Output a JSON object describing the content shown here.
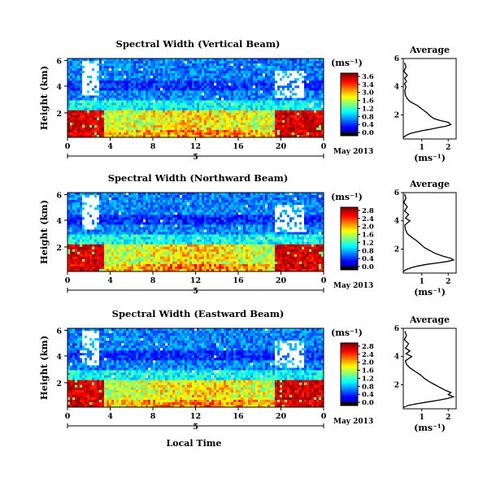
{
  "chart_data": [
    {
      "type": "heatmap",
      "title": "Spectral Width (Vertical Beam)",
      "ylabel": "Height (km)",
      "ytick_labels": [
        "6",
        "4",
        "2"
      ],
      "xtick_labels": [
        "0",
        "4",
        "8",
        "12",
        "16",
        "20",
        "0"
      ],
      "date_axis": {
        "day_label": "5",
        "month_label": "May 2013"
      },
      "colorbar": {
        "unit_label": "(ms⁻¹)",
        "ticks": [
          "3.6",
          "3.4",
          "3.0",
          "1.6",
          "1.2",
          "0.8",
          "0.4",
          "0.0"
        ]
      },
      "profile": {
        "title": "Average",
        "ytick_labels": [
          "6",
          "4",
          "2"
        ],
        "xtick_labels": [
          "1",
          "2"
        ],
        "xlabel": "(ms⁻¹)",
        "xlim": [
          0.3,
          2.3
        ],
        "ylim": [
          0.3,
          6
        ],
        "points": [
          [
            0.3,
            0.4
          ],
          [
            0.4,
            0.55
          ],
          [
            0.55,
            0.68
          ],
          [
            0.75,
            0.78
          ],
          [
            1.0,
            0.88
          ],
          [
            1.3,
            0.98
          ],
          [
            1.6,
            1.1
          ],
          [
            1.9,
            1.2
          ],
          [
            2.1,
            1.32
          ],
          [
            2.0,
            1.48
          ],
          [
            1.7,
            1.6
          ],
          [
            1.45,
            1.75
          ],
          [
            1.3,
            1.95
          ],
          [
            1.2,
            2.15
          ],
          [
            1.05,
            2.35
          ],
          [
            0.95,
            2.5
          ],
          [
            0.85,
            2.65
          ],
          [
            0.7,
            2.8
          ],
          [
            0.55,
            2.95
          ],
          [
            0.45,
            3.15
          ],
          [
            0.38,
            3.4
          ],
          [
            0.36,
            3.7
          ],
          [
            0.4,
            4.0
          ],
          [
            0.35,
            4.2
          ],
          [
            0.42,
            4.4
          ],
          [
            0.35,
            4.6
          ],
          [
            0.45,
            4.8
          ],
          [
            0.32,
            5.1
          ],
          [
            0.4,
            5.4
          ],
          [
            0.35,
            5.7
          ]
        ]
      }
    },
    {
      "type": "heatmap",
      "title": "Spectral Width (Northward Beam)",
      "ylabel": "Height (km)",
      "ytick_labels": [
        "6",
        "4",
        "2"
      ],
      "xtick_labels": [
        "0",
        "4",
        "8",
        "12",
        "16",
        "20",
        "0"
      ],
      "date_axis": {
        "day_label": "5",
        "month_label": "May 2013"
      },
      "colorbar": {
        "unit_label": "(ms⁻¹)",
        "ticks": [
          "2.8",
          "2.4",
          "2.0",
          "1.6",
          "1.2",
          "0.8",
          "0.4",
          "0.0"
        ]
      },
      "profile": {
        "title": "Average",
        "ytick_labels": [
          "6",
          "4",
          "2"
        ],
        "xtick_labels": [
          "1",
          "2"
        ],
        "xlabel": "(ms⁻¹)",
        "xlim": [
          0.3,
          2.3
        ],
        "ylim": [
          0.3,
          6
        ],
        "points": [
          [
            0.3,
            0.4
          ],
          [
            0.4,
            0.55
          ],
          [
            0.6,
            0.68
          ],
          [
            0.85,
            0.8
          ],
          [
            1.2,
            0.92
          ],
          [
            1.6,
            1.02
          ],
          [
            1.95,
            1.12
          ],
          [
            2.2,
            1.22
          ],
          [
            2.1,
            1.35
          ],
          [
            1.8,
            1.5
          ],
          [
            1.5,
            1.7
          ],
          [
            1.3,
            1.9
          ],
          [
            1.1,
            2.1
          ],
          [
            0.95,
            2.35
          ],
          [
            0.8,
            2.6
          ],
          [
            0.6,
            2.85
          ],
          [
            0.45,
            3.1
          ],
          [
            0.38,
            3.4
          ],
          [
            0.36,
            3.7
          ],
          [
            0.55,
            4.0
          ],
          [
            0.38,
            4.2
          ],
          [
            0.5,
            4.45
          ],
          [
            0.35,
            4.7
          ],
          [
            0.45,
            5.0
          ],
          [
            0.32,
            5.3
          ],
          [
            0.4,
            5.6
          ],
          [
            0.35,
            5.9
          ]
        ]
      }
    },
    {
      "type": "heatmap",
      "title": "Spectral Width (Eastward Beam)",
      "ylabel": "Height (km)",
      "ytick_labels": [
        "6",
        "4",
        "2"
      ],
      "xtick_labels": [
        "0",
        "4",
        "8",
        "12",
        "16",
        "20",
        "0"
      ],
      "xlabel": "Local Time",
      "date_axis": {
        "day_label": "5",
        "month_label": "May 2013"
      },
      "colorbar": {
        "unit_label": "(ms⁻¹)",
        "ticks": [
          "2.8",
          "2.4",
          "2.0",
          "1.6",
          "1.2",
          "0.8",
          "0.4",
          "0.0"
        ]
      },
      "profile": {
        "title": "Average",
        "ytick_labels": [
          "6",
          "4",
          "2"
        ],
        "xtick_labels": [
          "1",
          "2"
        ],
        "xlabel": "(ms⁻¹)",
        "xlim": [
          0.3,
          2.3
        ],
        "ylim": [
          0.3,
          6
        ],
        "points": [
          [
            0.3,
            0.4
          ],
          [
            0.5,
            0.55
          ],
          [
            0.8,
            0.65
          ],
          [
            1.2,
            0.78
          ],
          [
            1.6,
            0.9
          ],
          [
            1.95,
            1.02
          ],
          [
            2.2,
            1.15
          ],
          [
            2.0,
            1.3
          ],
          [
            2.1,
            1.45
          ],
          [
            1.9,
            1.6
          ],
          [
            1.7,
            1.8
          ],
          [
            1.5,
            2.0
          ],
          [
            1.3,
            2.2
          ],
          [
            1.1,
            2.45
          ],
          [
            0.95,
            2.7
          ],
          [
            0.75,
            2.95
          ],
          [
            0.55,
            3.2
          ],
          [
            0.42,
            3.45
          ],
          [
            0.38,
            3.7
          ],
          [
            0.62,
            4.0
          ],
          [
            0.4,
            4.2
          ],
          [
            0.55,
            4.4
          ],
          [
            0.38,
            4.6
          ],
          [
            0.5,
            4.9
          ],
          [
            0.34,
            5.2
          ],
          [
            0.42,
            5.5
          ],
          [
            0.36,
            5.8
          ]
        ]
      }
    }
  ]
}
